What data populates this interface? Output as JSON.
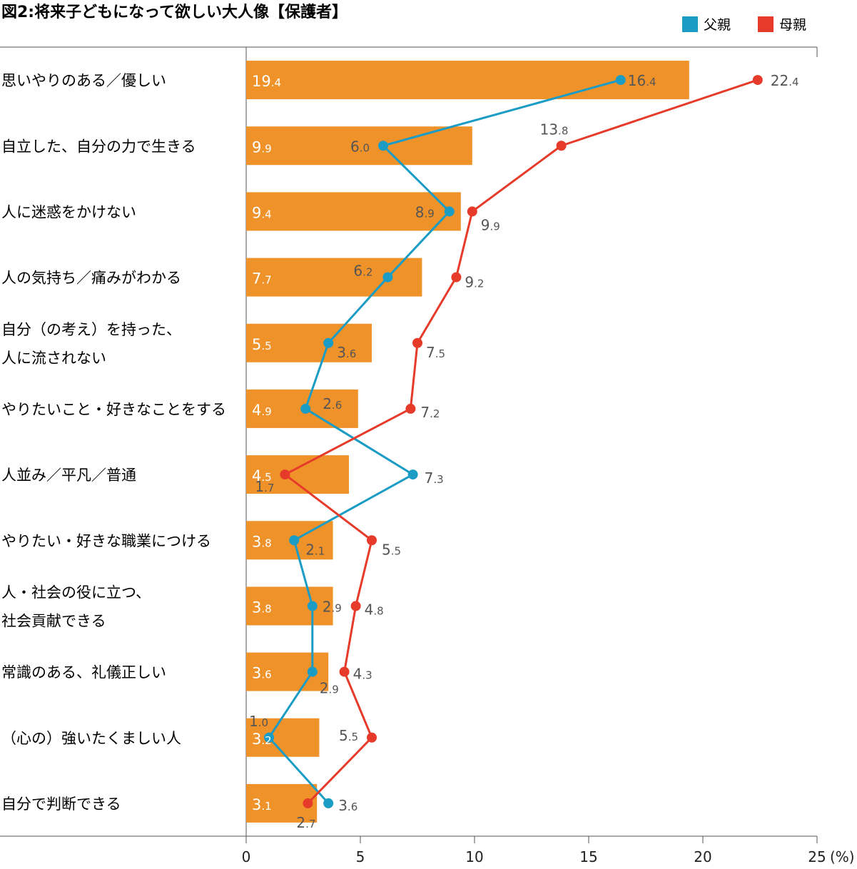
{
  "chart_data": {
    "type": "bar",
    "title": "図2:将来子どもになって欲しい大人像【保護者】",
    "unit_label": "(%)",
    "xlim": [
      0,
      25
    ],
    "x_ticks": [
      "0",
      "5",
      "10",
      "15",
      "20",
      "25"
    ],
    "legend_placement": "top-right",
    "categories": [
      [
        "思いやりのある／優しい"
      ],
      [
        "自立した、自分の力で生きる"
      ],
      [
        "人に迷惑をかけない"
      ],
      [
        "人の気持ち／痛みがわかる"
      ],
      [
        "自分（の考え）を持った、",
        "人に流されない"
      ],
      [
        "やりたいこと・好きなことをする"
      ],
      [
        "人並み／平凡／普通"
      ],
      [
        "やりたい・好きな職業につける"
      ],
      [
        "人・社会の役に立つ、",
        "社会貢献できる"
      ],
      [
        "常識のある、礼儀正しい"
      ],
      [
        "（心の）強いたくましい人"
      ],
      [
        "自分で判断できる"
      ]
    ],
    "series": [
      {
        "kind": "bar",
        "color": "#f0922a",
        "values": [
          19.4,
          9.9,
          9.4,
          7.7,
          5.5,
          4.9,
          4.5,
          3.8,
          3.8,
          3.6,
          3.2,
          3.1
        ]
      },
      {
        "kind": "line",
        "name": "父親",
        "color": "#1a9cc4",
        "values": [
          16.4,
          6.0,
          8.9,
          6.2,
          3.6,
          2.6,
          7.3,
          2.1,
          2.9,
          2.9,
          1.0,
          3.6
        ]
      },
      {
        "kind": "line",
        "name": "母親",
        "color": "#e63b2a",
        "values": [
          22.4,
          13.8,
          9.9,
          9.2,
          7.5,
          7.2,
          1.7,
          5.5,
          4.8,
          4.3,
          5.5,
          2.7
        ]
      }
    ],
    "grid": false
  }
}
